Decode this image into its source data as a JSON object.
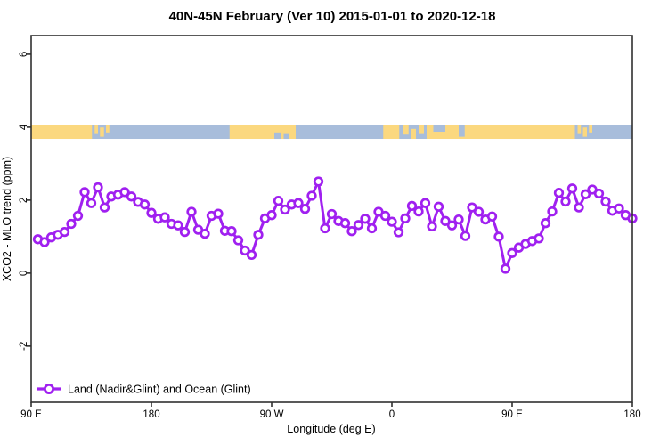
{
  "title": "40N-45N February (Ver 10)   2015-01-01 to 2020-12-18",
  "colors": {
    "series_purple": "#A020F0",
    "land_tan": "#FBD87F",
    "ocean_blue": "#A8BDDB",
    "axis": "#303030",
    "marker_fill": "#FFFFFF"
  },
  "chart_data": {
    "type": "line",
    "title": "40N-45N February (Ver 10)   2015-01-01 to 2020-12-18",
    "xlabel": "Longitude (deg E)",
    "ylabel": "XCO2 - MLO trend (ppm)",
    "xlim": [
      90,
      540
    ],
    "ylim": [
      -3.54,
      6.51
    ],
    "grid": false,
    "legend_position": "bottom-left-inside",
    "xticks": [
      {
        "value": 90,
        "label": "90 E"
      },
      {
        "value": 180,
        "label": "180"
      },
      {
        "value": 270,
        "label": "90 W"
      },
      {
        "value": 360,
        "label": "0"
      },
      {
        "value": 450,
        "label": "90 E"
      },
      {
        "value": 540,
        "label": "180"
      }
    ],
    "yticks": [
      {
        "value": -2,
        "label": "-2"
      },
      {
        "value": 0,
        "label": "0"
      },
      {
        "value": 2,
        "label": "2"
      },
      {
        "value": 4,
        "label": "4"
      },
      {
        "value": 6,
        "label": "6"
      }
    ],
    "series": [
      {
        "name": "Land (Nadir&Glint) and Ocean (Glint)",
        "color": "#A020F0",
        "marker": "open-circle",
        "x": [
          95,
          100,
          105,
          110,
          115,
          120,
          125,
          130,
          135,
          140,
          145,
          150,
          155,
          160,
          165,
          170,
          175,
          180,
          185,
          190,
          195,
          200,
          205,
          210,
          215,
          220,
          225,
          230,
          235,
          240,
          245,
          250,
          255,
          260,
          265,
          270,
          275,
          280,
          285,
          290,
          295,
          300,
          305,
          310,
          315,
          320,
          325,
          330,
          335,
          340,
          345,
          350,
          355,
          360,
          365,
          370,
          375,
          380,
          385,
          390,
          395,
          400,
          405,
          410,
          415,
          420,
          425,
          430,
          435,
          440,
          445,
          450,
          455,
          460,
          465,
          470,
          475,
          480,
          485,
          490,
          495,
          500,
          505,
          510,
          515,
          520,
          525,
          530,
          535,
          540
        ],
        "y": [
          0.93,
          0.85,
          0.98,
          1.05,
          1.13,
          1.35,
          1.57,
          2.22,
          1.92,
          2.35,
          1.8,
          2.1,
          2.15,
          2.22,
          2.1,
          1.95,
          1.88,
          1.65,
          1.49,
          1.53,
          1.35,
          1.31,
          1.13,
          1.68,
          1.19,
          1.08,
          1.57,
          1.63,
          1.16,
          1.15,
          0.9,
          0.62,
          0.5,
          1.05,
          1.5,
          1.59,
          1.98,
          1.74,
          1.88,
          1.92,
          1.76,
          2.12,
          2.51,
          1.23,
          1.62,
          1.43,
          1.37,
          1.15,
          1.32,
          1.49,
          1.23,
          1.68,
          1.57,
          1.41,
          1.12,
          1.5,
          1.84,
          1.69,
          1.92,
          1.28,
          1.82,
          1.43,
          1.31,
          1.47,
          1.02,
          1.8,
          1.68,
          1.47,
          1.55,
          1.0,
          0.12,
          0.55,
          0.7,
          0.8,
          0.88,
          0.95,
          1.37,
          1.69,
          2.2,
          1.96,
          2.32,
          1.8,
          2.16,
          2.29,
          2.18,
          1.96,
          1.71,
          1.77,
          1.59,
          1.5
        ]
      }
    ],
    "legend": [
      "Land (Nadir&Glint) and Ocean (Glint)"
    ],
    "land_ocean_band": {
      "description": "land/ocean strip along 40N-45N",
      "y_range": [
        3.68,
        4.07
      ],
      "ocean_color": "#A8BDDB",
      "land_color": "#FBD87F",
      "base": "ocean",
      "land_segments": [
        [
          90,
          135.5,
          0,
          1
        ],
        [
          137.5,
          140,
          0,
          0.6
        ],
        [
          141.5,
          144.5,
          0.2,
          0.85
        ],
        [
          146,
          148.5,
          0,
          0.55
        ],
        [
          238.5,
          288,
          0,
          1
        ],
        [
          353.5,
          365.5,
          0,
          1
        ],
        [
          368.5,
          372.5,
          0,
          0.7
        ],
        [
          374.5,
          378,
          0.3,
          1
        ],
        [
          380,
          384,
          0,
          0.6
        ],
        [
          386,
          391,
          0,
          1
        ],
        [
          391,
          400,
          0.5,
          1
        ],
        [
          400,
          497,
          0,
          1
        ],
        [
          499,
          501.5,
          0,
          0.6
        ],
        [
          503,
          506,
          0.2,
          0.85
        ],
        [
          507.5,
          510,
          0,
          0.55
        ]
      ],
      "ocean_overlays": [
        [
          272,
          277,
          0.55,
          1
        ],
        [
          279,
          283,
          0.6,
          1
        ],
        [
          410,
          414.5,
          0,
          0.85
        ]
      ]
    }
  }
}
